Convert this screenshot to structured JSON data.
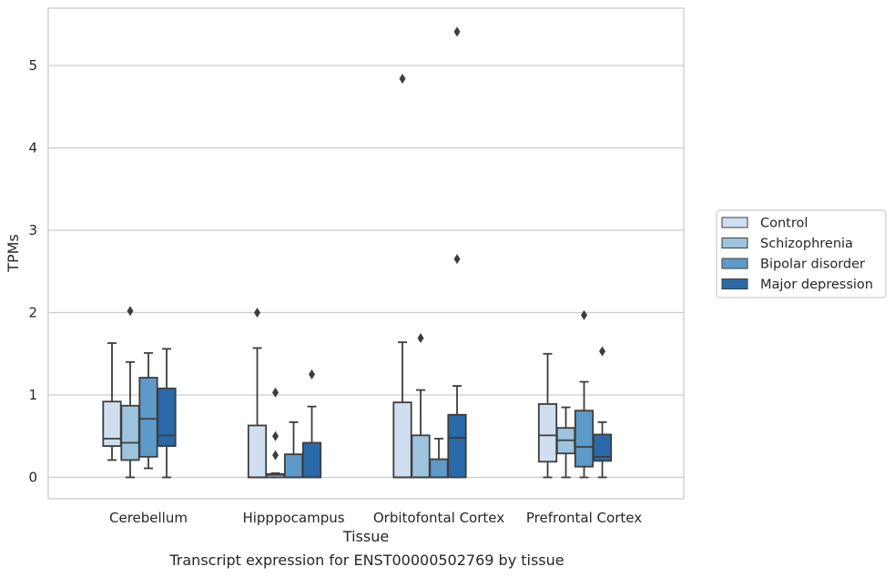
{
  "chart_data": {
    "type": "box",
    "caption": "Transcript expression for ENST00000502769 by tissue",
    "xlabel": "Tissue",
    "ylabel": "TPMs",
    "ylim": [
      -0.25,
      5.7
    ],
    "yticks": [
      "0",
      "1",
      "2",
      "3",
      "4",
      "5"
    ],
    "grid": "horizontal",
    "legend_position": "right",
    "categories": [
      "Cerebellum",
      "Hipppocampus",
      "Orbitofontal Cortex",
      "Prefrontal Cortex"
    ],
    "series": [
      {
        "name": "Control",
        "color": "#cfdfef",
        "boxes": [
          {
            "whislo": 0.21,
            "q1": 0.38,
            "med": 0.47,
            "q3": 0.92,
            "whishi": 1.63,
            "fliers": []
          },
          {
            "whislo": 0.0,
            "q1": 0.0,
            "med": 0.0,
            "q3": 0.63,
            "whishi": 1.57,
            "fliers": [
              2.0
            ]
          },
          {
            "whislo": 0.0,
            "q1": 0.0,
            "med": 0.0,
            "q3": 0.91,
            "whishi": 1.64,
            "fliers": [
              4.84
            ]
          },
          {
            "whislo": 0.0,
            "q1": 0.19,
            "med": 0.51,
            "q3": 0.89,
            "whishi": 1.5,
            "fliers": []
          }
        ]
      },
      {
        "name": "Schizophrenia",
        "color": "#9cc4de",
        "boxes": [
          {
            "whislo": 0.0,
            "q1": 0.21,
            "med": 0.42,
            "q3": 0.87,
            "whishi": 1.4,
            "fliers": [
              2.02
            ]
          },
          {
            "whislo": 0.0,
            "q1": 0.0,
            "med": 0.03,
            "q3": 0.04,
            "whishi": 0.05,
            "fliers": [
              1.03,
              0.5,
              0.27
            ]
          },
          {
            "whislo": 0.0,
            "q1": 0.0,
            "med": 0.0,
            "q3": 0.51,
            "whishi": 1.06,
            "fliers": [
              1.69
            ]
          },
          {
            "whislo": 0.0,
            "q1": 0.29,
            "med": 0.45,
            "q3": 0.6,
            "whishi": 0.85,
            "fliers": []
          }
        ]
      },
      {
        "name": "Bipolar disorder",
        "color": "#5d9ac8",
        "boxes": [
          {
            "whislo": 0.11,
            "q1": 0.25,
            "med": 0.71,
            "q3": 1.21,
            "whishi": 1.51,
            "fliers": []
          },
          {
            "whislo": 0.0,
            "q1": 0.0,
            "med": 0.0,
            "q3": 0.28,
            "whishi": 0.67,
            "fliers": []
          },
          {
            "whislo": 0.0,
            "q1": 0.0,
            "med": 0.0,
            "q3": 0.22,
            "whishi": 0.47,
            "fliers": []
          },
          {
            "whislo": 0.0,
            "q1": 0.13,
            "med": 0.37,
            "q3": 0.81,
            "whishi": 1.16,
            "fliers": [
              1.97
            ]
          }
        ]
      },
      {
        "name": "Major depression",
        "color": "#2a69a8",
        "boxes": [
          {
            "whislo": 0.0,
            "q1": 0.38,
            "med": 0.51,
            "q3": 1.08,
            "whishi": 1.56,
            "fliers": []
          },
          {
            "whislo": 0.0,
            "q1": 0.0,
            "med": 0.0,
            "q3": 0.42,
            "whishi": 0.86,
            "fliers": [
              1.25
            ]
          },
          {
            "whislo": 0.0,
            "q1": 0.0,
            "med": 0.48,
            "q3": 0.76,
            "whishi": 1.11,
            "fliers": [
              5.41,
              2.65
            ]
          },
          {
            "whislo": 0.0,
            "q1": 0.2,
            "med": 0.25,
            "q3": 0.52,
            "whishi": 0.67,
            "fliers": [
              1.53
            ]
          }
        ]
      }
    ]
  }
}
